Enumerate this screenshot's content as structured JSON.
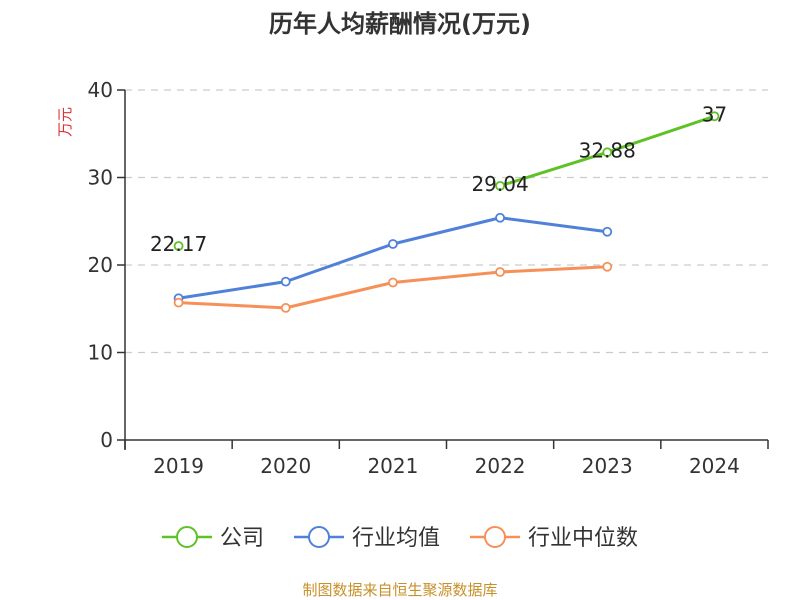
{
  "chart_data": {
    "type": "line",
    "title": "历年人均薪酬情况(万元)",
    "ylabel": "万元",
    "xlabel": "",
    "categories": [
      "2019",
      "2020",
      "2021",
      "2022",
      "2023",
      "2024"
    ],
    "ylim": [
      0,
      40
    ],
    "yticks": [
      0,
      10,
      20,
      30,
      40
    ],
    "grid": true,
    "legend_position": "bottom",
    "series": [
      {
        "name": "公司",
        "color": "#5ec227",
        "values": [
          22.17,
          null,
          null,
          29.04,
          32.88,
          37
        ],
        "labels": [
          "22.17",
          null,
          null,
          "29.04",
          "32.88",
          "37"
        ]
      },
      {
        "name": "行业均值",
        "color": "#4f81d8",
        "values": [
          16.2,
          18.1,
          22.4,
          25.4,
          23.8,
          null
        ]
      },
      {
        "name": "行业中位数",
        "color": "#f79058",
        "values": [
          15.7,
          15.1,
          18.0,
          19.2,
          19.8,
          null
        ]
      }
    ],
    "source": "制图数据来自恒生聚源数据库"
  },
  "colors": {
    "unit": "#e03030",
    "source": "#c8902a",
    "axis": "#333333",
    "grid": "#cccccc"
  }
}
